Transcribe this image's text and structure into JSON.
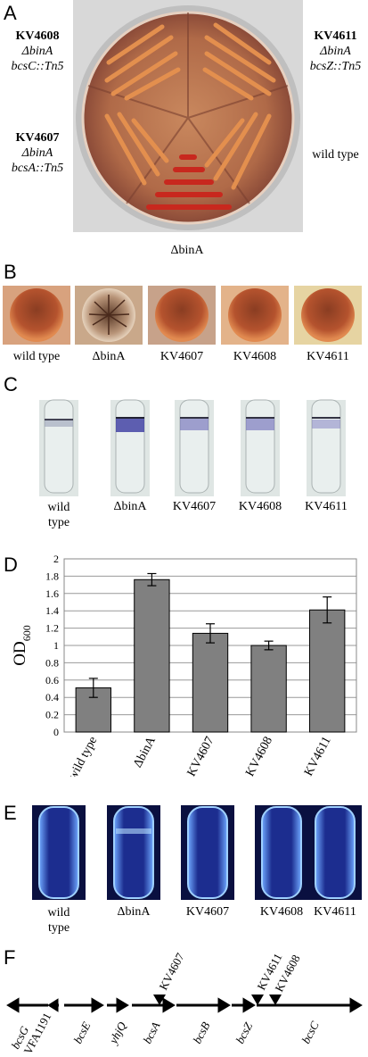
{
  "panels": {
    "A": {
      "letter": "A",
      "left_top": {
        "name": "KV4608",
        "line2": "ΔbinA",
        "line3": "bcsC::Tn5"
      },
      "left_bottom": {
        "name": "KV4607",
        "line2": "ΔbinA",
        "line3": "bcsA::Tn5"
      },
      "right_top": {
        "name": "KV4611",
        "line2": "ΔbinA",
        "line3": "bcsZ::Tn5"
      },
      "right_bottom": "wild type",
      "bottom": "ΔbinA"
    },
    "B": {
      "letter": "B",
      "labels": [
        "wild type",
        "ΔbinA",
        "KV4607",
        "KV4608",
        "KV4611"
      ]
    },
    "C": {
      "letter": "C",
      "labels": [
        "wild\ntype",
        "ΔbinA",
        "KV4607",
        "KV4608",
        "KV4611"
      ]
    },
    "D": {
      "letter": "D"
    },
    "E": {
      "letter": "E",
      "labels": [
        "wild\ntype",
        "ΔbinA",
        "KV4607",
        "KV4608",
        "KV4611"
      ]
    },
    "F": {
      "letter": "F",
      "genes": [
        "bcsG",
        "VFA1191",
        "bcsE",
        "yhjQ",
        "bcsA",
        "bcsB",
        "bcsZ",
        "bcsC"
      ],
      "insertions": [
        "KV4607",
        "KV4611",
        "KV4608"
      ]
    }
  },
  "chart_data": {
    "type": "bar",
    "categories": [
      "wild type",
      "ΔbinA",
      "KV4607",
      "KV4608",
      "KV4611"
    ],
    "values": [
      0.51,
      1.76,
      1.14,
      1.0,
      1.41
    ],
    "errors": [
      0.11,
      0.07,
      0.11,
      0.05,
      0.15
    ],
    "ylabel": "OD600",
    "ylabel_main": "OD",
    "ylabel_sub": "600",
    "ylim": [
      0,
      2
    ],
    "yticks": [
      "0",
      "0.2",
      "0.4",
      "0.6",
      "0.8",
      "1",
      "1.2",
      "1.4",
      "1.6",
      "1.8",
      "2"
    ],
    "grid": true,
    "bar_color": "#808080"
  }
}
